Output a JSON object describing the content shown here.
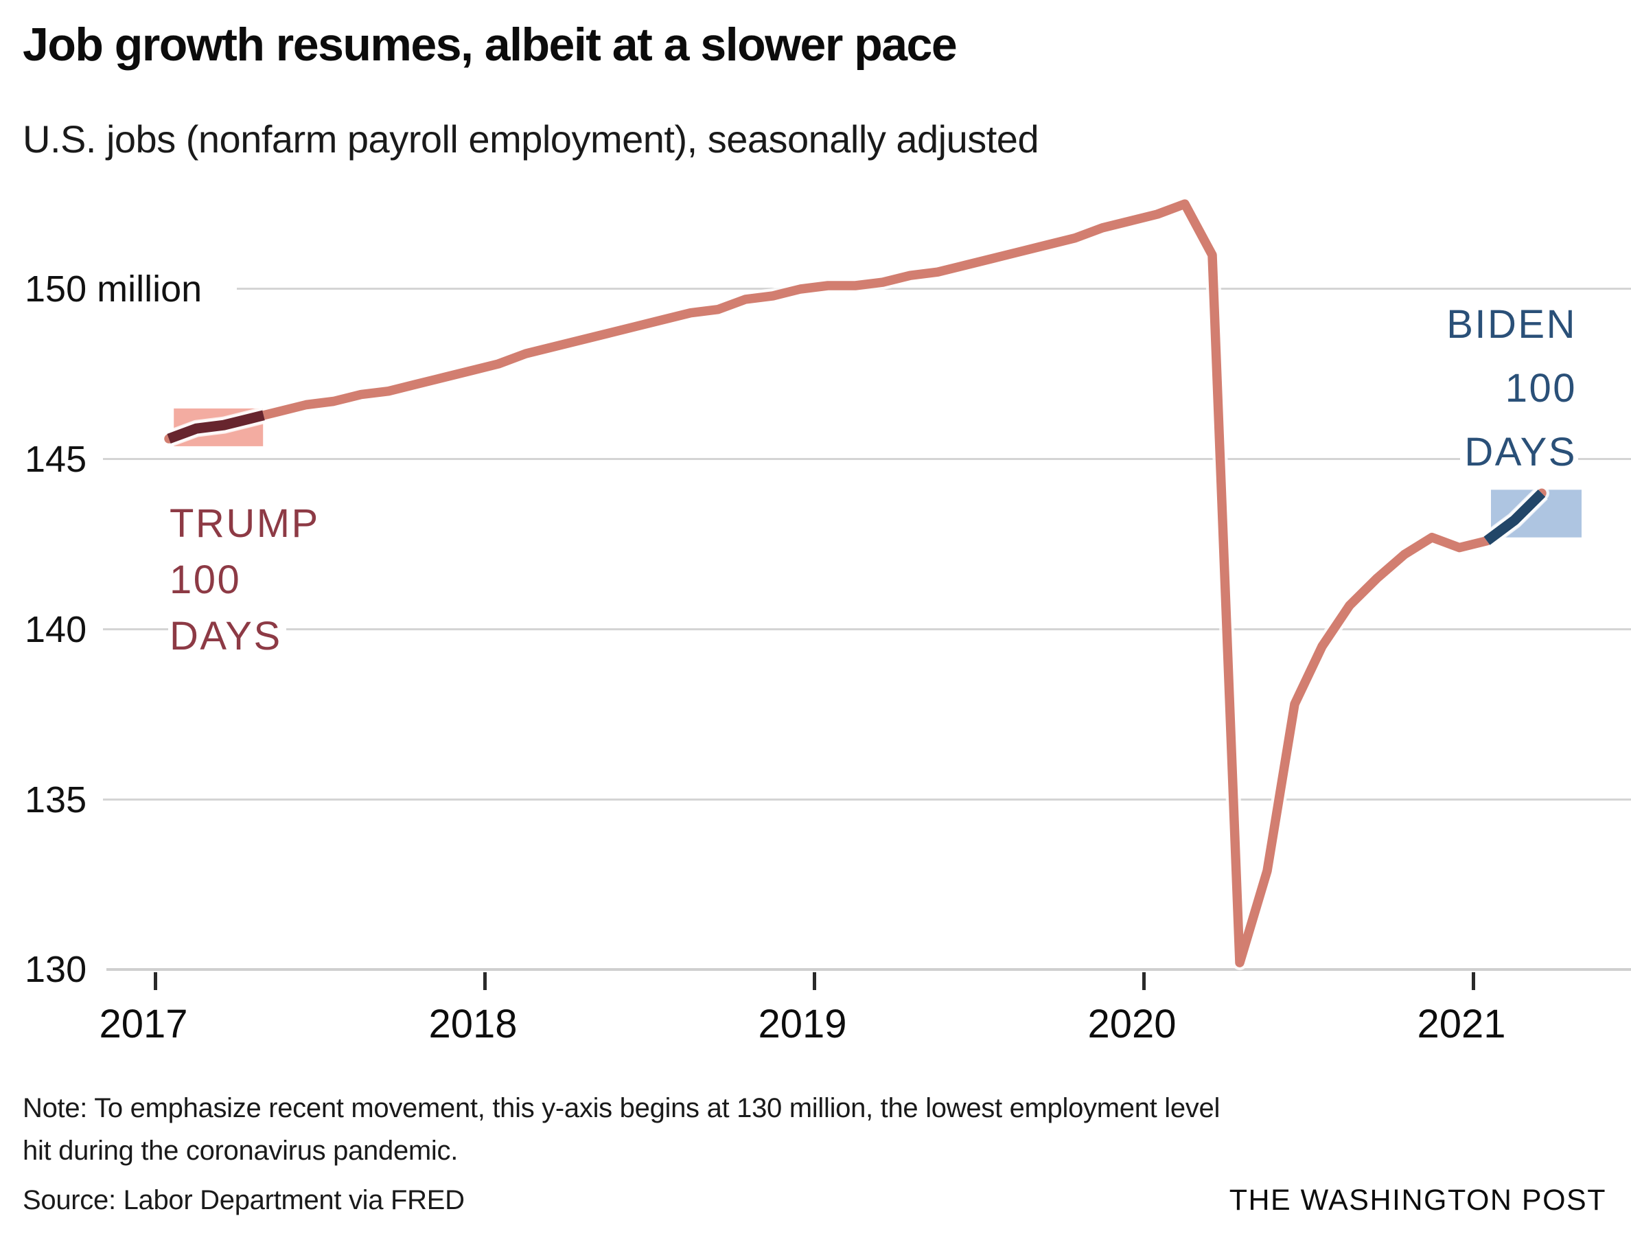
{
  "header": {
    "title": "Job growth resumes, albeit at a slower pace",
    "subtitle": "U.S. jobs (nonfarm payroll employment), seasonally adjusted"
  },
  "y_axis": {
    "labels": [
      "150 million",
      "145",
      "140",
      "135",
      "130"
    ]
  },
  "x_axis": {
    "labels": [
      "2017",
      "2018",
      "2019",
      "2020",
      "2021"
    ]
  },
  "annotations": {
    "trump": {
      "lines": [
        "TRUMP",
        "100",
        "DAYS"
      ]
    },
    "biden": {
      "lines": [
        "BIDEN",
        "100",
        "DAYS"
      ]
    }
  },
  "footer": {
    "note_line1": "Note: To emphasize recent movement, this y-axis begins at 130 million, the lowest employment level",
    "note_line2": "hit during the coronavirus pandemic.",
    "source": "Source: Labor Department via FRED",
    "credit": "THE WASHINGTON POST"
  },
  "chart_data": {
    "type": "line",
    "title": "Job growth resumes, albeit at a slower pace",
    "subtitle": "U.S. jobs (nonfarm payroll employment), seasonally adjusted",
    "unit": "millions of jobs, seasonally adjusted",
    "frequency": "monthly",
    "x_start": "2017-01",
    "x_end": "2021-03",
    "xticks": [
      "2017",
      "2018",
      "2019",
      "2020",
      "2021"
    ],
    "yticks": [
      130,
      135,
      140,
      145,
      150
    ],
    "ylim": [
      130,
      153
    ],
    "grid": "horizontal",
    "legend_position": "none",
    "series": [
      {
        "name": "U.S. nonfarm payroll employment (millions)",
        "color": "#d27e70",
        "values": [
          145.6,
          145.9,
          146.0,
          146.2,
          146.4,
          146.6,
          146.7,
          146.9,
          147.0,
          147.2,
          147.4,
          147.6,
          147.8,
          148.1,
          148.3,
          148.5,
          148.7,
          148.9,
          149.1,
          149.3,
          149.4,
          149.7,
          149.8,
          150.0,
          150.1,
          150.1,
          150.2,
          150.4,
          150.5,
          150.7,
          150.9,
          151.1,
          151.3,
          151.5,
          151.8,
          152.0,
          152.2,
          152.5,
          151.0,
          130.2,
          132.9,
          137.8,
          139.5,
          140.7,
          141.5,
          142.2,
          142.7,
          142.4,
          142.6,
          143.2,
          144.0
        ]
      }
    ],
    "highlights": [
      {
        "id": "trump",
        "label": "TRUMP 100 DAYS",
        "line_color": "#67252e",
        "text_color": "#8d3a45",
        "box_color": "#f3aca1",
        "segment_months": [
          0,
          3.45
        ],
        "box_months": [
          0.18,
          3.43
        ],
        "box_values": [
          145.38,
          146.49
        ]
      },
      {
        "id": "biden",
        "label": "BIDEN 100 DAYS",
        "line_color": "#224668",
        "text_color": "#2a5078",
        "box_color": "#aec5e1",
        "segment_months": [
          48,
          50
        ],
        "box_months": [
          48.15,
          51.45
        ],
        "box_values": [
          142.7,
          144.1
        ]
      }
    ]
  }
}
